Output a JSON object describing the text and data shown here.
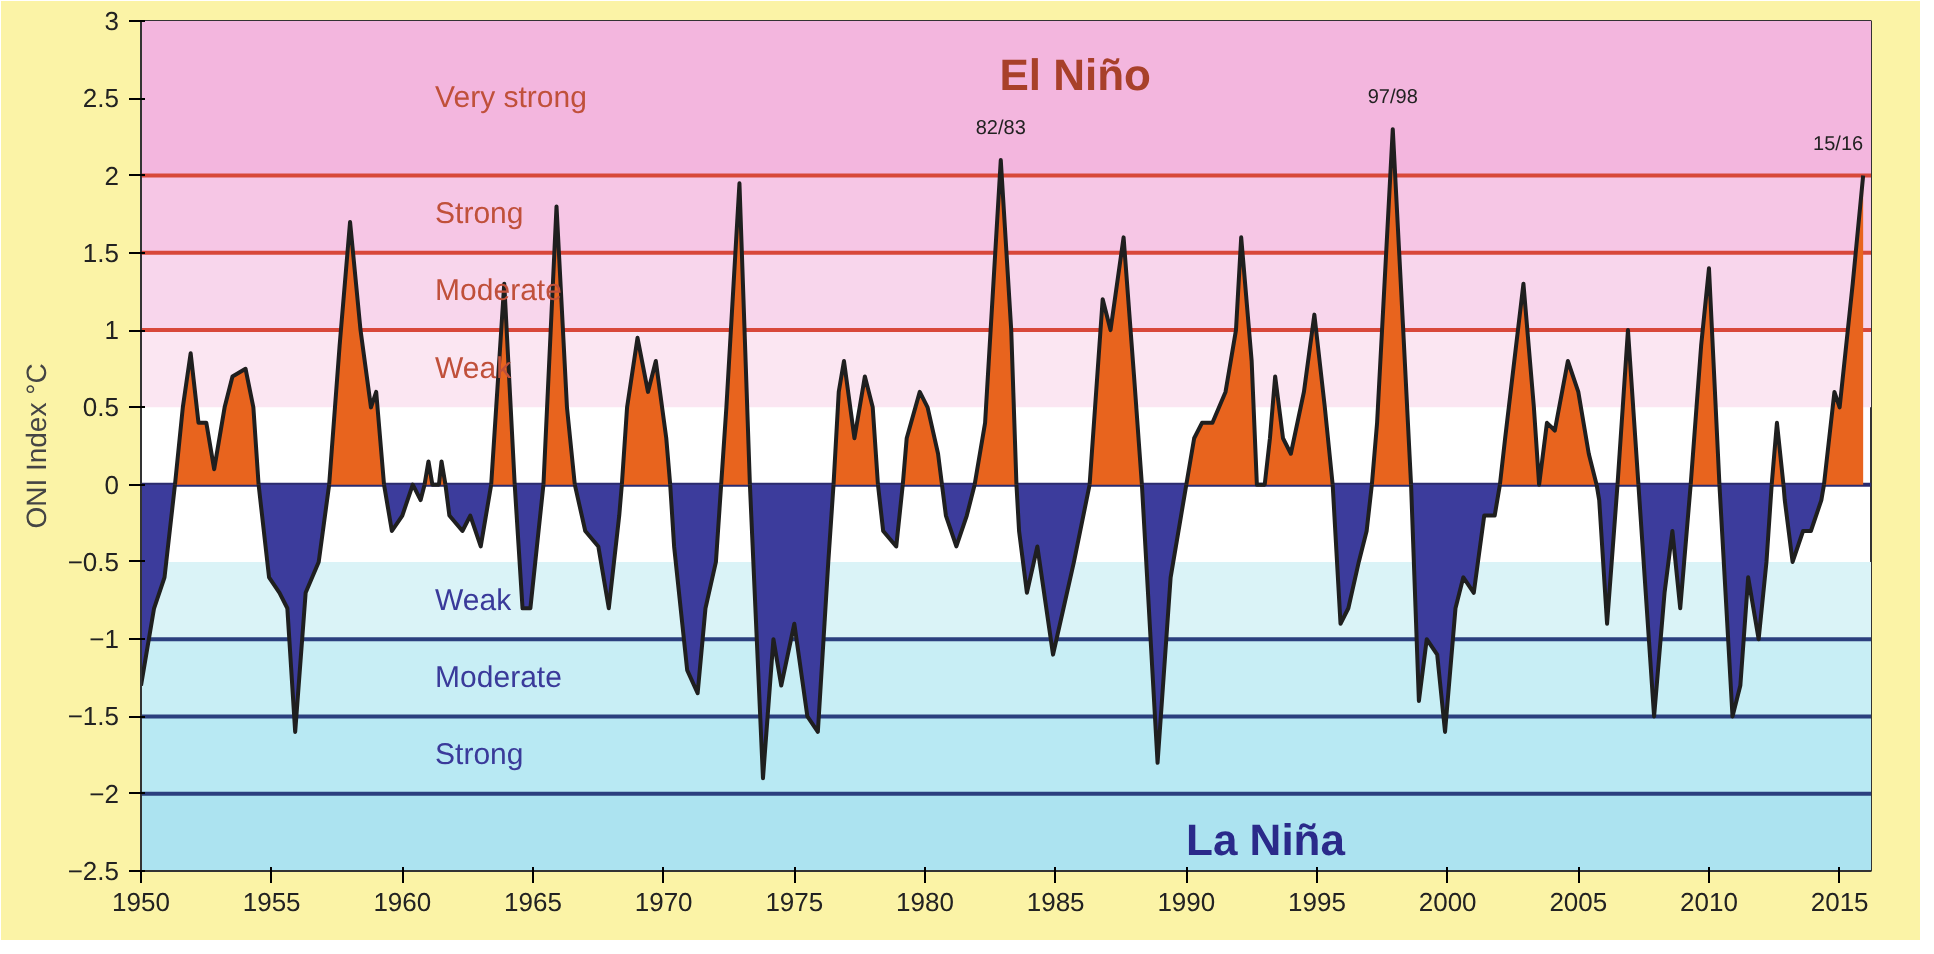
{
  "chart_data": {
    "type": "area",
    "ylabel": "ONI Index °C",
    "xlim": [
      1950,
      2016.2
    ],
    "ylim": [
      -2.5,
      3
    ],
    "xticks": [
      1950,
      1955,
      1960,
      1965,
      1970,
      1975,
      1980,
      1985,
      1990,
      1995,
      2000,
      2005,
      2010,
      2015
    ],
    "yticks": [
      -2.5,
      -2,
      -1.5,
      -1,
      -0.5,
      0,
      0.5,
      1,
      1.5,
      2,
      2.5,
      3
    ],
    "x": [
      1950.0,
      1950.5,
      1950.9,
      1951.3,
      1951.6,
      1951.9,
      1952.2,
      1952.5,
      1952.8,
      1953.2,
      1953.5,
      1954.0,
      1954.3,
      1954.5,
      1954.9,
      1955.3,
      1955.6,
      1955.9,
      1956.3,
      1956.8,
      1957.2,
      1957.6,
      1958.0,
      1958.4,
      1958.8,
      1959.0,
      1959.3,
      1959.6,
      1960.0,
      1960.4,
      1960.7,
      1960.85,
      1961.0,
      1961.15,
      1961.3,
      1961.4,
      1961.5,
      1961.65,
      1961.8,
      1962.3,
      1962.6,
      1963.0,
      1963.4,
      1963.9,
      1964.3,
      1964.6,
      1964.9,
      1965.4,
      1965.9,
      1966.3,
      1966.6,
      1967.0,
      1967.5,
      1967.9,
      1968.3,
      1968.4,
      1968.6,
      1969.0,
      1969.4,
      1969.7,
      1970.1,
      1970.25,
      1970.4,
      1970.9,
      1971.3,
      1971.6,
      1972.0,
      1972.2,
      1972.4,
      1972.9,
      1973.3,
      1973.8,
      1974.2,
      1974.5,
      1975.0,
      1975.5,
      1975.9,
      1976.3,
      1976.5,
      1976.7,
      1976.9,
      1977.3,
      1977.7,
      1978.0,
      1978.2,
      1978.4,
      1978.9,
      1979.15,
      1979.3,
      1979.8,
      1980.1,
      1980.5,
      1980.65,
      1980.8,
      1981.2,
      1981.6,
      1981.9,
      1982.3,
      1982.9,
      1983.3,
      1983.5,
      1983.6,
      1983.9,
      1984.3,
      1984.9,
      1985.3,
      1985.7,
      1986.3,
      1986.8,
      1987.1,
      1987.6,
      1988.0,
      1988.3,
      1988.4,
      1988.9,
      1989.4,
      1989.8,
      1990.0,
      1990.3,
      1990.6,
      1991.0,
      1991.5,
      1991.9,
      1992.1,
      1992.5,
      1992.7,
      1992.9,
      1993.0,
      1993.2,
      1993.4,
      1993.7,
      1994.0,
      1994.5,
      1994.9,
      1995.3,
      1995.6,
      1995.9,
      1996.2,
      1996.6,
      1996.9,
      1997.1,
      1997.3,
      1997.9,
      1998.3,
      1998.6,
      1998.9,
      1999.2,
      1999.6,
      1999.9,
      2000.3,
      2000.6,
      2001.0,
      2001.4,
      2001.8,
      2002.0,
      2002.2,
      2002.9,
      2003.3,
      2003.5,
      2003.8,
      2004.1,
      2004.6,
      2005.0,
      2005.4,
      2005.7,
      2005.8,
      2006.1,
      2006.5,
      2006.9,
      2007.3,
      2007.9,
      2008.3,
      2008.6,
      2008.9,
      2009.3,
      2009.7,
      2010.0,
      2010.4,
      2010.9,
      2011.2,
      2011.5,
      2011.9,
      2012.2,
      2012.4,
      2012.6,
      2012.85,
      2012.9,
      2013.2,
      2013.6,
      2013.9,
      2014.3,
      2014.4,
      2014.8,
      2015.0,
      2015.5,
      2015.9
    ],
    "series": [
      {
        "color": "#e8641e",
        "values": [
          null,
          null,
          null,
          0.0,
          0.5,
          0.85,
          0.4,
          0.4,
          0.1,
          0.5,
          0.7,
          0.75,
          0.5,
          0.0,
          null,
          null,
          null,
          null,
          null,
          null,
          0.0,
          0.9,
          1.7,
          1.0,
          0.5,
          0.6,
          0.0,
          null,
          null,
          null,
          null,
          0,
          0.15,
          0,
          0,
          0,
          0.15,
          0,
          null,
          null,
          null,
          null,
          0.0,
          1.3,
          0.0,
          null,
          null,
          0.0,
          1.8,
          0.5,
          0.0,
          null,
          null,
          null,
          null,
          0,
          0.5,
          0.95,
          0.6,
          0.8,
          0.3,
          0,
          null,
          null,
          null,
          null,
          null,
          0,
          0.5,
          1.95,
          0.0,
          null,
          null,
          null,
          null,
          null,
          null,
          null,
          0,
          0.6,
          0.8,
          0.3,
          0.7,
          0.5,
          0,
          null,
          null,
          0,
          0.3,
          0.6,
          0.5,
          0.2,
          0,
          null,
          null,
          null,
          0,
          0.4,
          2.1,
          1.0,
          0,
          null,
          null,
          null,
          null,
          null,
          null,
          0.0,
          1.2,
          1.0,
          1.6,
          0.7,
          0,
          null,
          null,
          null,
          null,
          0,
          0.3,
          0.4,
          0.4,
          0.6,
          1.0,
          1.6,
          0.8,
          0.0,
          0,
          0,
          0.3,
          0.7,
          0.3,
          0.2,
          0.6,
          1.1,
          0.5,
          0.0,
          null,
          null,
          null,
          null,
          0,
          0.4,
          2.3,
          1.0,
          0.0,
          null,
          null,
          null,
          null,
          null,
          null,
          null,
          null,
          null,
          0,
          0.3,
          1.3,
          0.5,
          0.0,
          0.4,
          0.35,
          0.8,
          0.6,
          0.2,
          0,
          null,
          null,
          0.0,
          1.0,
          0.0,
          null,
          null,
          null,
          null,
          0.0,
          0.9,
          1.4,
          0.0,
          null,
          null,
          null,
          null,
          null,
          0,
          0.4,
          0,
          null,
          null,
          null,
          null,
          null,
          0,
          0.6,
          0.5,
          1.3,
          2.0
        ]
      },
      {
        "color": "#3c3c9c",
        "values": [
          -1.3,
          -0.8,
          -0.6,
          0.0,
          null,
          null,
          null,
          null,
          null,
          null,
          null,
          null,
          null,
          0.0,
          -0.6,
          -0.7,
          -0.8,
          -1.6,
          -0.7,
          -0.5,
          0.0,
          null,
          null,
          null,
          null,
          null,
          0.0,
          -0.3,
          -0.2,
          0.0,
          -0.1,
          0,
          null,
          null,
          null,
          null,
          null,
          0,
          -0.2,
          -0.3,
          -0.2,
          -0.4,
          0.0,
          null,
          0.0,
          -0.8,
          -0.8,
          0.0,
          null,
          null,
          0.0,
          -0.3,
          -0.4,
          -0.8,
          -0.2,
          0,
          null,
          null,
          null,
          null,
          null,
          0,
          -0.4,
          -1.2,
          -1.35,
          -0.8,
          -0.5,
          0,
          null,
          null,
          0.0,
          -1.9,
          -1.0,
          -1.3,
          -0.9,
          -1.5,
          -1.6,
          -0.5,
          0,
          null,
          null,
          null,
          null,
          null,
          0,
          -0.3,
          -0.4,
          0,
          null,
          null,
          null,
          null,
          0,
          -0.2,
          -0.4,
          -0.2,
          0,
          null,
          null,
          null,
          0,
          -0.3,
          -0.7,
          -0.4,
          -1.1,
          -0.8,
          -0.5,
          0.0,
          null,
          null,
          null,
          null,
          0,
          -0.3,
          -1.8,
          -0.6,
          -0.2,
          0,
          null,
          null,
          null,
          null,
          null,
          null,
          null,
          null,
          null,
          null,
          null,
          null,
          null,
          null,
          null,
          null,
          null,
          0.0,
          -0.9,
          -0.8,
          -0.5,
          -0.3,
          0,
          null,
          null,
          null,
          0.0,
          -1.4,
          -1.0,
          -1.1,
          -1.6,
          -0.8,
          -0.6,
          -0.7,
          -0.2,
          -0.2,
          0,
          null,
          null,
          null,
          null,
          null,
          null,
          null,
          null,
          null,
          0,
          -0.1,
          -0.9,
          0.0,
          null,
          0.0,
          -1.5,
          -0.7,
          -0.3,
          -0.8,
          0.0,
          null,
          null,
          0.0,
          -1.5,
          -1.3,
          -0.6,
          -1.0,
          -0.5,
          0,
          null,
          0,
          -0.1,
          -0.5,
          -0.3,
          -0.3,
          -0.1,
          0,
          null,
          null,
          null,
          null
        ]
      }
    ],
    "bands": [
      {
        "axis": "y",
        "from": 2,
        "to": 3,
        "label": "Very strong",
        "color": "#f3b6de"
      },
      {
        "axis": "y",
        "from": 1.5,
        "to": 2,
        "label": "Strong",
        "color": "#f6c6e5"
      },
      {
        "axis": "y",
        "from": 1,
        "to": 1.5,
        "label": "Moderate",
        "color": "#f8d6ec"
      },
      {
        "axis": "y",
        "from": 0.5,
        "to": 1,
        "label": "Weak",
        "color": "#fbe6f2"
      },
      {
        "axis": "y",
        "from": -0.5,
        "to": -1,
        "label": "Weak",
        "color": "#daf3f7"
      },
      {
        "axis": "y",
        "from": -1,
        "to": -1.5,
        "label": "Moderate",
        "color": "#c8eef5"
      },
      {
        "axis": "y",
        "from": -1.5,
        "to": -2,
        "label": "Strong",
        "color": "#b8e9f3"
      },
      {
        "axis": "y",
        "from": -2,
        "to": -2.5,
        "color": "#ace3f0"
      }
    ],
    "ref_lines": [
      {
        "axis": "y",
        "value": 2,
        "color": "#d8483a"
      },
      {
        "axis": "y",
        "value": 1.5,
        "color": "#d8483a"
      },
      {
        "axis": "y",
        "value": 1,
        "color": "#d8483a"
      },
      {
        "axis": "y",
        "value": 0,
        "color": "#2b2b6e"
      },
      {
        "axis": "y",
        "value": -1,
        "color": "#2b3f7e"
      },
      {
        "axis": "y",
        "value": -1.5,
        "color": "#2b3f7e"
      },
      {
        "axis": "y",
        "value": -2,
        "color": "#2b3f7e"
      }
    ],
    "annotations": [
      "El Niño",
      "La Niña",
      {
        "text": "82/83",
        "x": 1982.9,
        "y": 2.1
      },
      {
        "text": "97/98",
        "x": 1997.9,
        "y": 2.3
      },
      {
        "text": "15/16",
        "x": 2015.9,
        "y": 2.0
      }
    ]
  }
}
